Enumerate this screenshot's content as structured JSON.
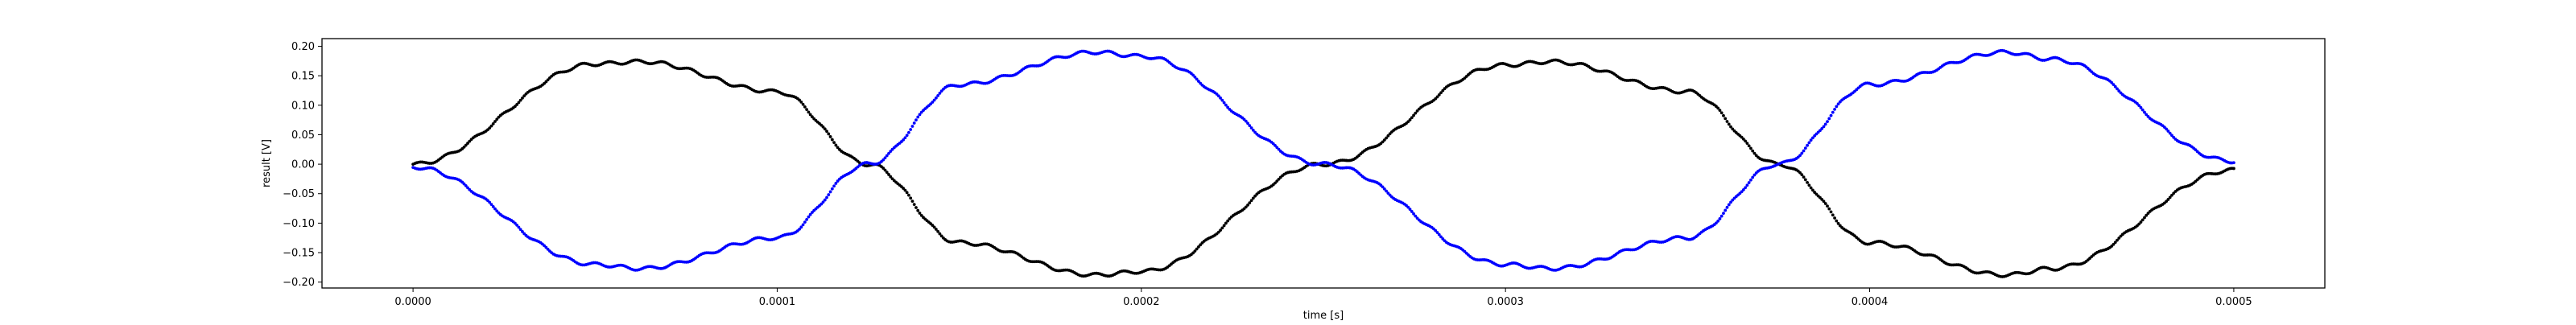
{
  "chart_data": {
    "type": "scatter",
    "title": "",
    "xlabel": "time [s]",
    "ylabel": "result [V]",
    "xlim": [
      -2.5e-05,
      0.000525
    ],
    "ylim": [
      -0.21,
      0.213
    ],
    "x_ticks": [
      0.0,
      0.0001,
      0.0002,
      0.0003,
      0.0004,
      0.0005
    ],
    "x_tick_labels": [
      "0.0000",
      "0.0001",
      "0.0002",
      "0.0003",
      "0.0004",
      "0.0005"
    ],
    "y_ticks": [
      0.2,
      0.15,
      0.1,
      0.05,
      0.0,
      -0.05,
      -0.1,
      -0.15,
      -0.2
    ],
    "y_tick_labels": [
      "0.20",
      "0.15",
      "0.10",
      "0.05",
      "0.00",
      "−0.05",
      "−0.10",
      "−0.15",
      "−0.20"
    ],
    "grid": false,
    "legend": "none",
    "sample_count": 1000,
    "t_start": 0.0,
    "t_end": 0.0005,
    "series": [
      {
        "color": "#000000",
        "x": [
          0.0,
          5e-05,
          6.25e-05,
          0.0001,
          0.000125,
          0.00015,
          0.0001875,
          0.0002,
          0.00025,
          0.0003,
          0.0003125,
          0.00035,
          0.000375,
          0.0004,
          0.0004375,
          0.00045,
          0.0005
        ],
        "y": [
          0.0,
          0.17,
          0.174,
          0.123,
          0.0,
          -0.133,
          -0.188,
          -0.182,
          0.0,
          0.168,
          0.174,
          0.123,
          0.0,
          -0.133,
          -0.188,
          -0.177,
          -0.01
        ]
      },
      {
        "color": "#0000ff",
        "x": [
          0.0,
          5e-05,
          6.25e-05,
          0.0001,
          0.000125,
          0.00015,
          0.0001875,
          0.0002,
          0.00025,
          0.0003,
          0.0003125,
          0.00035,
          0.000375,
          0.0004,
          0.0004375,
          0.00045,
          0.0005
        ],
        "y": [
          -0.005,
          -0.17,
          -0.177,
          -0.125,
          0.0,
          0.135,
          0.19,
          0.183,
          0.0,
          -0.17,
          -0.177,
          -0.125,
          0.0,
          0.135,
          0.19,
          0.178,
          0.005
        ]
      }
    ]
  }
}
